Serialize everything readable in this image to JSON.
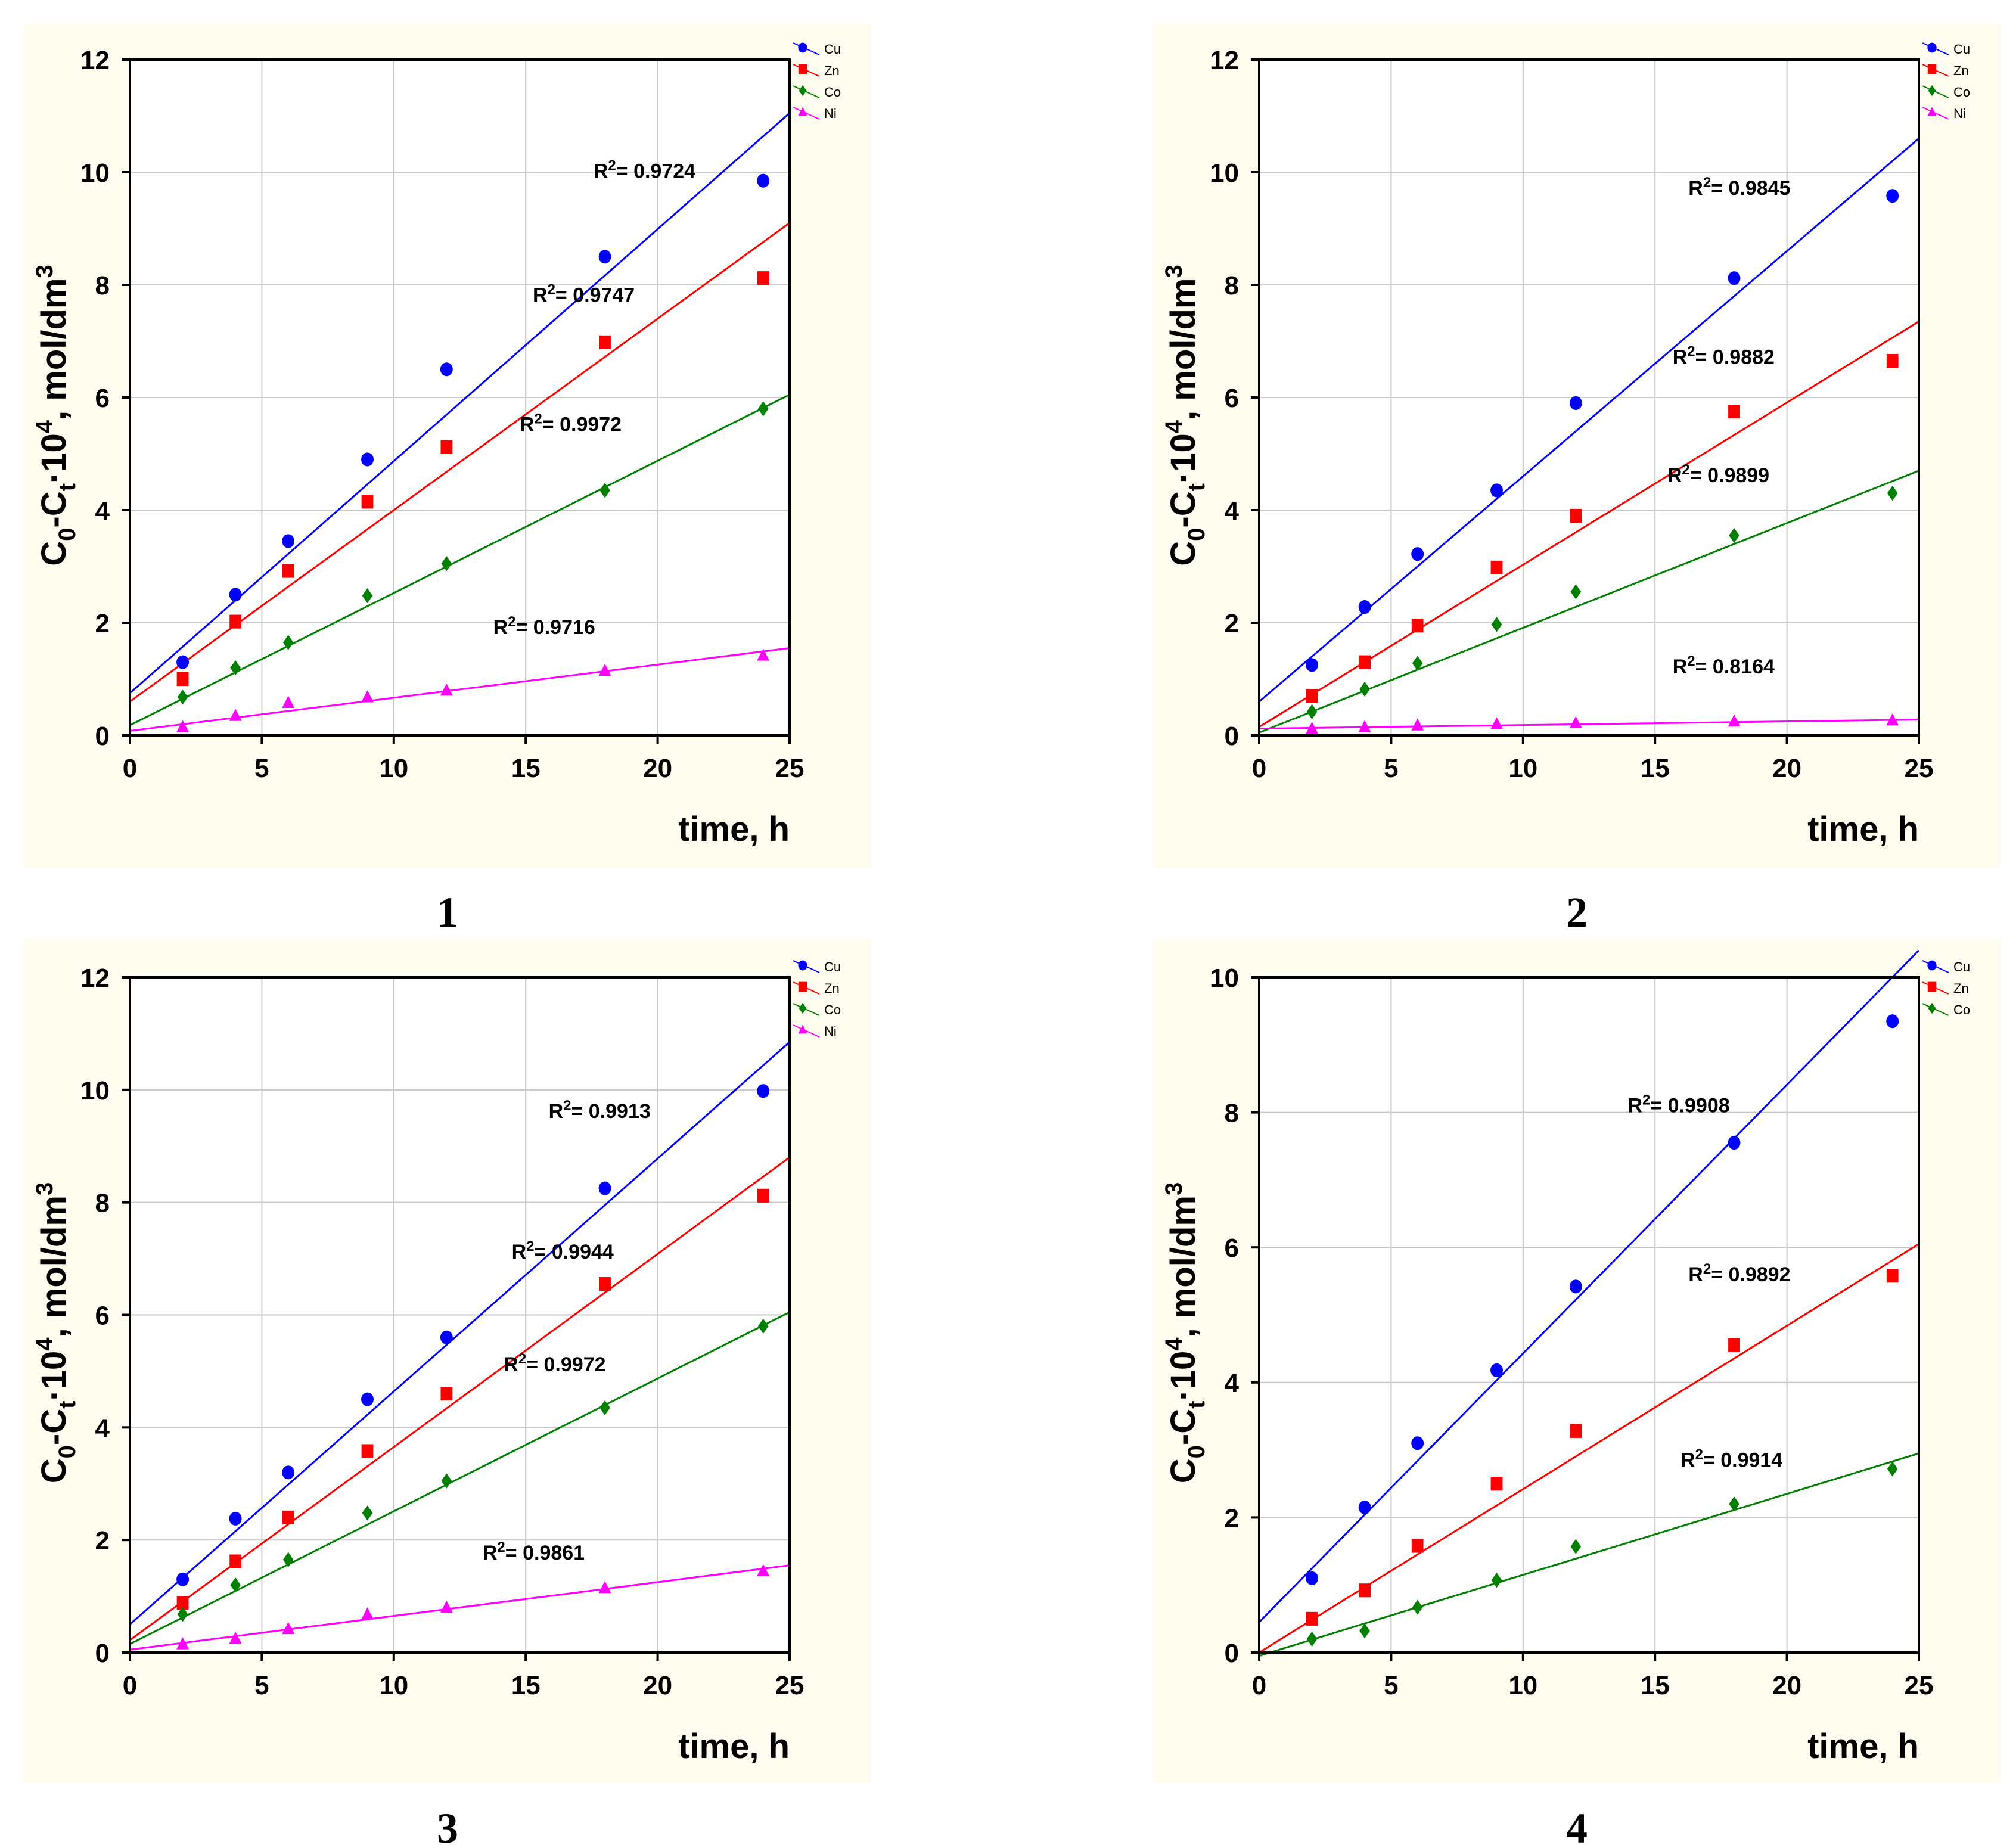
{
  "colors": {
    "Cu": "#0000ff",
    "Zn": "#ff0000",
    "Co": "#008000",
    "Ni": "#ff00ff",
    "panel_background": "#fefbef",
    "grid": "#c8c8c8"
  },
  "chart_data": [
    {
      "type": "scatter",
      "panel_label": "1",
      "xlabel": "time, h",
      "ylabel": {
        "base": "C",
        "sub0": "0",
        "dash": "-C",
        "subt": "t",
        "mid": "·10",
        "sup4": "4",
        "unit": ", mol/dm",
        "sup3": "3"
      },
      "xlim": [
        0,
        25
      ],
      "ylim": [
        0,
        12
      ],
      "xticks": [
        0,
        5,
        10,
        15,
        20,
        25
      ],
      "yticks": [
        0,
        2,
        4,
        6,
        8,
        10,
        12
      ],
      "legend": [
        "Cu",
        "Zn",
        "Co",
        "Ni"
      ],
      "legend_position": "top-right",
      "x": [
        2,
        4,
        6,
        9,
        12,
        18,
        24
      ],
      "series": [
        {
          "name": "Cu",
          "marker": "circle",
          "values": [
            1.3,
            2.5,
            3.45,
            4.9,
            6.5,
            8.5,
            9.85
          ],
          "fit": [
            0.75,
            11.05
          ],
          "r2": "0.9724",
          "r2_at": [
            19.5,
            9.9
          ]
        },
        {
          "name": "Zn",
          "marker": "square",
          "values": [
            1.0,
            2.02,
            2.92,
            4.15,
            5.12,
            6.98,
            8.12
          ],
          "fit": [
            0.6,
            9.1
          ],
          "r2": "0.9747",
          "r2_at": [
            17.2,
            7.7
          ]
        },
        {
          "name": "Co",
          "marker": "diamond",
          "values": [
            0.68,
            1.2,
            1.65,
            2.48,
            3.05,
            4.35,
            5.8
          ],
          "fit": [
            0.18,
            6.05
          ],
          "r2": "0.9972",
          "r2_at": [
            16.7,
            5.4
          ]
        },
        {
          "name": "Ni",
          "marker": "triangle",
          "values": [
            0.15,
            0.35,
            0.58,
            0.68,
            0.8,
            1.15,
            1.42
          ],
          "fit": [
            0.08,
            1.55
          ],
          "r2": "0.9716",
          "r2_at": [
            15.7,
            1.8
          ]
        }
      ]
    },
    {
      "type": "scatter",
      "panel_label": "2",
      "xlabel": "time, h",
      "ylabel": {
        "base": "C",
        "sub0": "0",
        "dash": "-C",
        "subt": "t",
        "mid": "·10",
        "sup4": "4",
        "unit": ", mol/dm",
        "sup3": "3"
      },
      "xlim": [
        0,
        25
      ],
      "ylim": [
        0,
        12
      ],
      "xticks": [
        0,
        5,
        10,
        15,
        20,
        25
      ],
      "yticks": [
        0,
        2,
        4,
        6,
        8,
        10,
        12
      ],
      "legend": [
        "Cu",
        "Zn",
        "Co",
        "Ni"
      ],
      "legend_position": "top-right",
      "x": [
        2,
        4,
        6,
        9,
        12,
        18,
        24
      ],
      "series": [
        {
          "name": "Cu",
          "marker": "circle",
          "values": [
            1.25,
            2.28,
            3.22,
            4.35,
            5.9,
            8.12,
            9.58
          ],
          "fit": [
            0.6,
            10.6
          ],
          "r2": "0.9845",
          "r2_at": [
            18.2,
            9.6
          ]
        },
        {
          "name": "Zn",
          "marker": "square",
          "values": [
            0.7,
            1.3,
            1.95,
            2.98,
            3.9,
            5.75,
            6.65
          ],
          "fit": [
            0.15,
            7.35
          ],
          "r2": "0.9882",
          "r2_at": [
            17.6,
            6.6
          ]
        },
        {
          "name": "Co",
          "marker": "diamond",
          "values": [
            0.42,
            0.82,
            1.28,
            1.97,
            2.55,
            3.55,
            4.3
          ],
          "fit": [
            0.05,
            4.7
          ],
          "r2": "0.9899",
          "r2_at": [
            17.4,
            4.5
          ]
        },
        {
          "name": "Ni",
          "marker": "triangle",
          "values": [
            0.12,
            0.15,
            0.18,
            0.2,
            0.22,
            0.25,
            0.27
          ],
          "fit": [
            0.12,
            0.28
          ],
          "r2": "0.8164",
          "r2_at": [
            17.6,
            1.1
          ]
        }
      ]
    },
    {
      "type": "scatter",
      "panel_label": "3",
      "xlabel": "time, h",
      "ylabel": {
        "base": "C",
        "sub0": "0",
        "dash": "-C",
        "subt": "t",
        "mid": "·10",
        "sup4": "4",
        "unit": ", mol/dm",
        "sup3": "3"
      },
      "xlim": [
        0,
        25
      ],
      "ylim": [
        0,
        12
      ],
      "xticks": [
        0,
        5,
        10,
        15,
        20,
        25
      ],
      "yticks": [
        0,
        2,
        4,
        6,
        8,
        10,
        12
      ],
      "legend": [
        "Cu",
        "Zn",
        "Co",
        "Ni"
      ],
      "legend_position": "top-right",
      "x": [
        2,
        4,
        6,
        9,
        12,
        18,
        24
      ],
      "series": [
        {
          "name": "Cu",
          "marker": "circle",
          "values": [
            1.3,
            2.38,
            3.2,
            4.5,
            5.6,
            8.25,
            9.98
          ],
          "fit": [
            0.5,
            10.85
          ],
          "r2": "0.9913",
          "r2_at": [
            17.8,
            9.5
          ]
        },
        {
          "name": "Zn",
          "marker": "square",
          "values": [
            0.88,
            1.62,
            2.4,
            3.58,
            4.6,
            6.55,
            8.12
          ],
          "fit": [
            0.22,
            8.8
          ],
          "r2": "0.9944",
          "r2_at": [
            16.4,
            7.0
          ]
        },
        {
          "name": "Co",
          "marker": "diamond",
          "values": [
            0.68,
            1.2,
            1.65,
            2.48,
            3.05,
            4.35,
            5.8
          ],
          "fit": [
            0.15,
            6.05
          ],
          "r2": "0.9972",
          "r2_at": [
            16.1,
            5.0
          ]
        },
        {
          "name": "Ni",
          "marker": "triangle",
          "values": [
            0.15,
            0.25,
            0.42,
            0.68,
            0.8,
            1.15,
            1.45
          ],
          "fit": [
            0.05,
            1.55
          ],
          "r2": "0.9861",
          "r2_at": [
            15.3,
            1.65
          ]
        }
      ]
    },
    {
      "type": "scatter",
      "panel_label": "4",
      "xlabel": "time, h",
      "ylabel": {
        "base": "C",
        "sub0": "0",
        "dash": "-C",
        "subt": "t",
        "mid": "·10",
        "sup4": "4",
        "unit": ", mol/dm",
        "sup3": "3"
      },
      "xlim": [
        0,
        25
      ],
      "ylim": [
        0,
        10
      ],
      "xticks": [
        0,
        5,
        10,
        15,
        20,
        25
      ],
      "yticks": [
        0,
        2,
        4,
        6,
        8,
        10
      ],
      "legend": [
        "Cu",
        "Zn",
        "Co"
      ],
      "legend_position": "top-right",
      "x": [
        2,
        4,
        6,
        9,
        12,
        18,
        24
      ],
      "series": [
        {
          "name": "Cu",
          "marker": "circle",
          "values": [
            1.1,
            2.15,
            3.1,
            4.18,
            5.42,
            7.55,
            9.35
          ],
          "fit": [
            0.45,
            10.4
          ],
          "r2": "0.9908",
          "r2_at": [
            15.9,
            8.0
          ]
        },
        {
          "name": "Zn",
          "marker": "square",
          "values": [
            0.5,
            0.92,
            1.58,
            2.5,
            3.28,
            4.55,
            5.58
          ],
          "fit": [
            0.0,
            6.05
          ],
          "r2": "0.9892",
          "r2_at": [
            18.2,
            5.5
          ]
        },
        {
          "name": "Co",
          "marker": "diamond",
          "values": [
            0.2,
            0.32,
            0.67,
            1.07,
            1.57,
            2.2,
            2.72
          ],
          "fit": [
            -0.05,
            2.95
          ],
          "r2": "0.9914",
          "r2_at": [
            17.9,
            2.75
          ]
        }
      ]
    }
  ]
}
